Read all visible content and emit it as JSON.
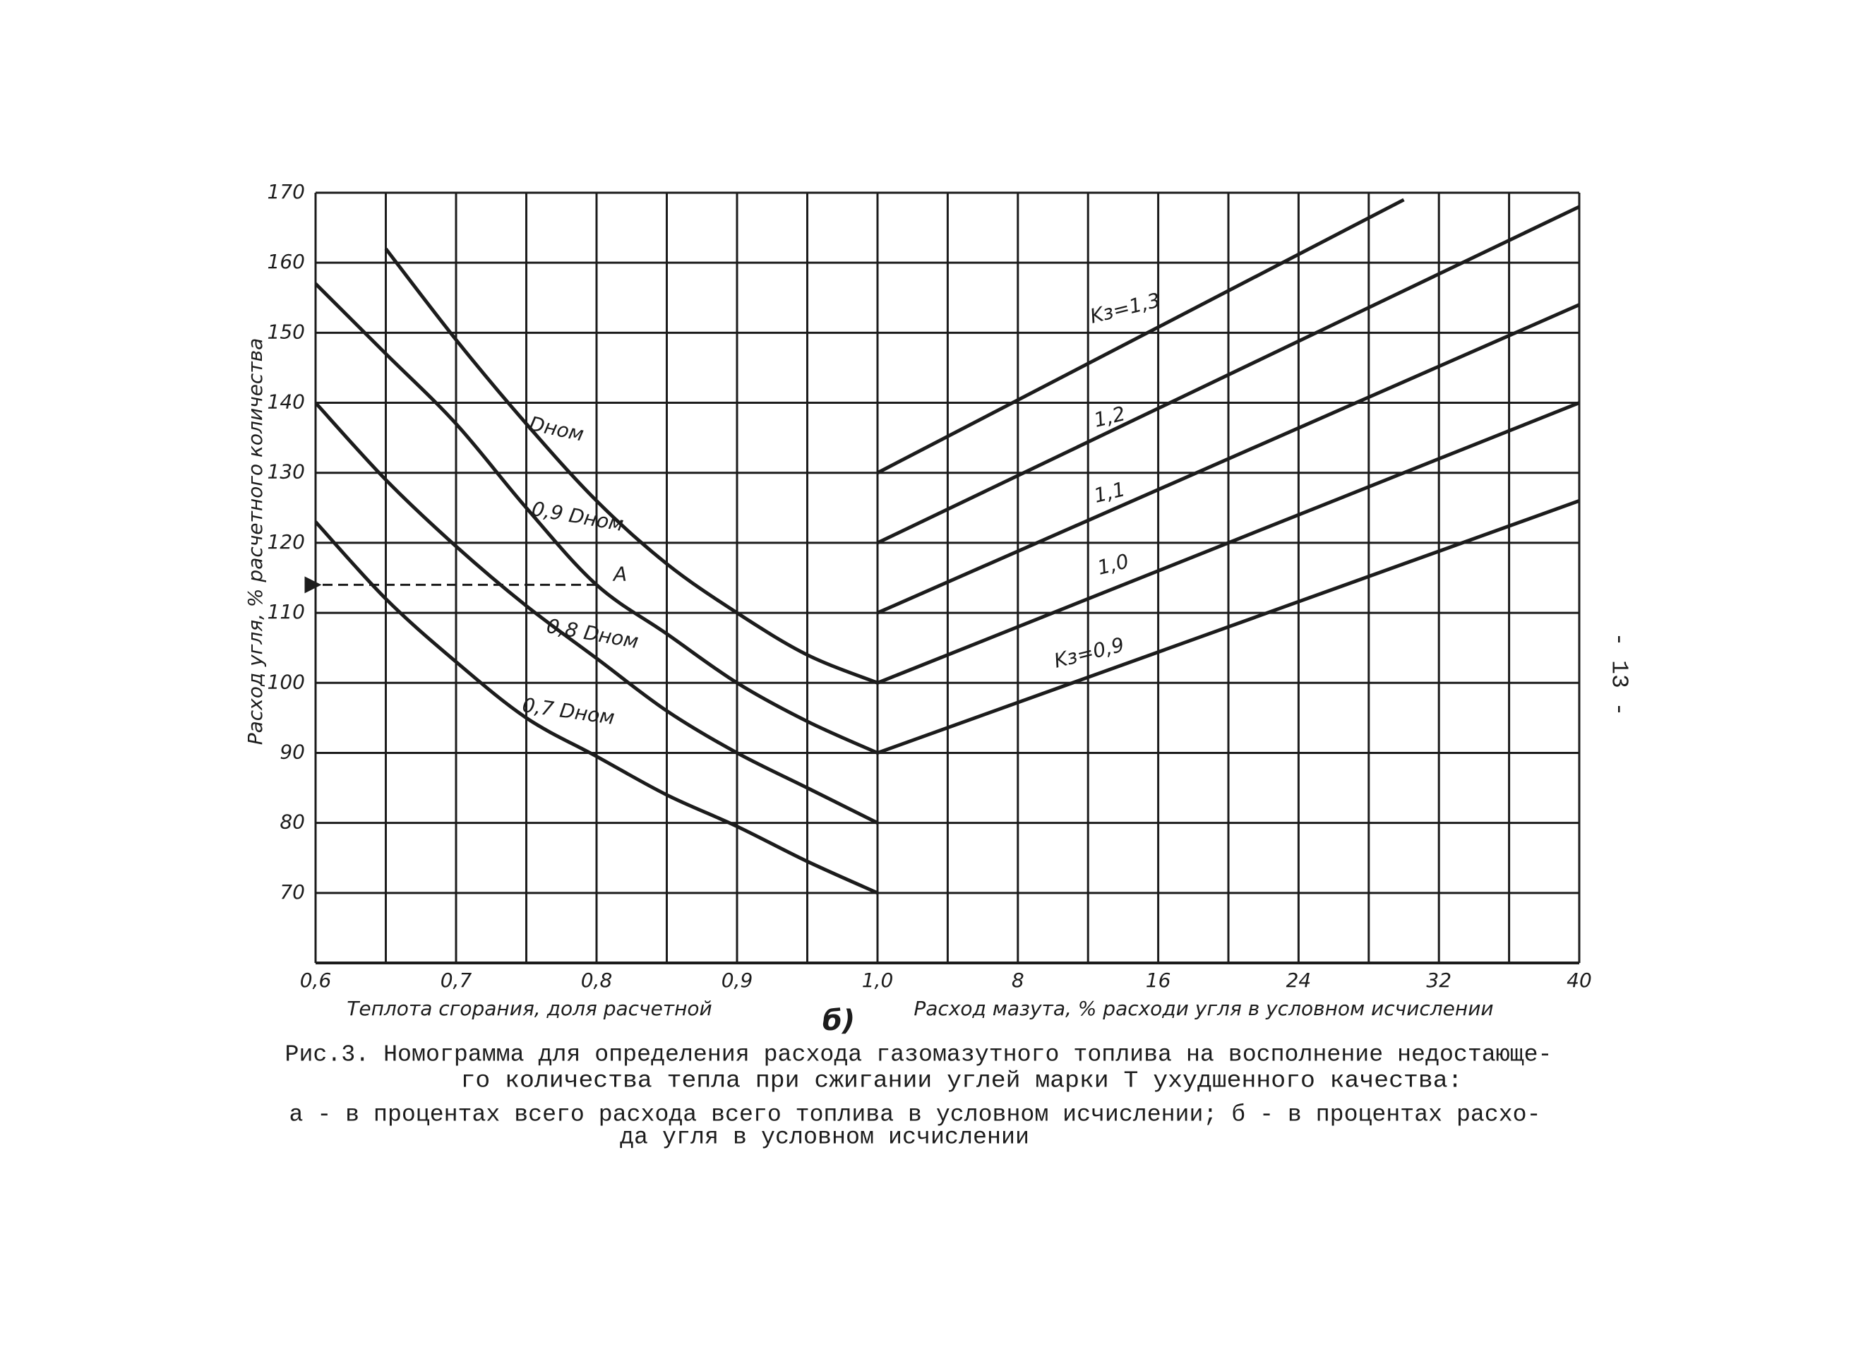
{
  "chart_data": [
    {
      "type": "line",
      "xlabel": "Теплота сгорания, доля расчетной",
      "ylabel": "Расход угля, % расчетного количества",
      "x": [
        0.6,
        0.65,
        0.7,
        0.75,
        0.8,
        0.85,
        0.9,
        0.95,
        1.0
      ],
      "xlim": [
        0.6,
        1.0
      ],
      "xticks": [
        {
          "value": 0.6,
          "label": "0,6"
        },
        {
          "value": 0.7,
          "label": "0,7"
        },
        {
          "value": 0.8,
          "label": "0,8"
        },
        {
          "value": 0.9,
          "label": "0,9"
        },
        {
          "value": 1.0,
          "label": "1,0"
        }
      ],
      "ylim": [
        60,
        170
      ],
      "yticks": [
        70,
        80,
        90,
        100,
        110,
        120,
        130,
        140,
        150,
        160,
        170
      ],
      "grid": true,
      "color": "#1c1c1c",
      "series": [
        {
          "name": "Dном",
          "values": [
            null,
            162,
            149,
            137,
            126,
            117,
            110,
            104,
            100
          ]
        },
        {
          "name": "0,9 Dном",
          "values": [
            157,
            147,
            137,
            125,
            114,
            107,
            100,
            94.5,
            90
          ]
        },
        {
          "name": "0,8 Dном",
          "values": [
            140,
            129,
            119.5,
            111,
            103.5,
            96,
            90,
            85,
            80
          ]
        },
        {
          "name": "0,7 Dном",
          "values": [
            123,
            112,
            103,
            95,
            89.5,
            84,
            79.5,
            74.5,
            70
          ]
        }
      ],
      "annotation": {
        "text": "A",
        "x": 0.8,
        "y": 114
      }
    },
    {
      "type": "line",
      "xlabel": "Расход мазута, % расходи угля в условном исчислении",
      "x": [
        0,
        30,
        40
      ],
      "xlim": [
        0,
        40
      ],
      "xticks": [
        8,
        16,
        24,
        32,
        40
      ],
      "ylim": [
        60,
        170
      ],
      "grid": true,
      "color": "#1c1c1c",
      "series": [
        {
          "name": "Kз=1,3",
          "values": [
            130,
            169,
            null
          ]
        },
        {
          "name": "1,2",
          "values": [
            120,
            156,
            168
          ]
        },
        {
          "name": "1,1",
          "values": [
            110,
            143,
            154
          ]
        },
        {
          "name": "1,0",
          "values": [
            100,
            130,
            140
          ]
        },
        {
          "name": "Kз=0,9",
          "values": [
            90,
            117,
            126
          ]
        }
      ]
    }
  ],
  "panel_label": "б)",
  "caption": [
    "Рис.3. Номограмма для определения расхода газомазутного топлива на восполнение недостающе-",
    "го количества тепла при сжигании углей марки Т ухудшенного качества:",
    "а - в процентах всего расхода всего топлива в условном исчислении; б - в процентах расхо-",
    "да угля в условном исчислении"
  ],
  "page_number": "- 13 -"
}
